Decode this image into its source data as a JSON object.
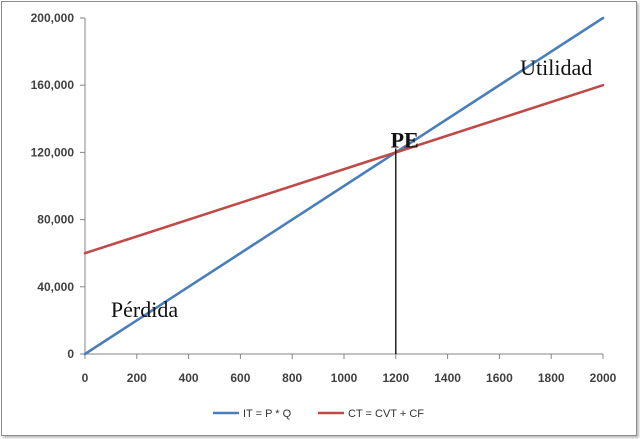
{
  "chart_data": {
    "type": "line",
    "x": [
      0,
      2000
    ],
    "xlim": [
      0,
      2000
    ],
    "ylim": [
      0,
      200000
    ],
    "x_ticks": [
      "0",
      "200",
      "400",
      "600",
      "800",
      "1000",
      "1200",
      "1400",
      "1600",
      "1800",
      "2000"
    ],
    "x_tick_values": [
      0,
      200,
      400,
      600,
      800,
      1000,
      1200,
      1400,
      1600,
      1800,
      2000
    ],
    "y_ticks": [
      "0",
      "40,000",
      "80,000",
      "120,000",
      "160,000",
      "200,000"
    ],
    "y_tick_values": [
      0,
      40000,
      80000,
      120000,
      160000,
      200000
    ],
    "grid": false,
    "legend_position": "bottom",
    "series": [
      {
        "name": "IT = P * Q",
        "x": [
          0,
          2000
        ],
        "values": [
          0,
          200000
        ],
        "color": "#4a7ebb"
      },
      {
        "name": "CT = CVT + CF",
        "x": [
          0,
          2000
        ],
        "values": [
          60000,
          160000
        ],
        "color": "#be4b48"
      }
    ],
    "break_even": {
      "x": 1200,
      "y": 120000
    },
    "annotations": [
      {
        "text": "PE",
        "x": 1180,
        "y": 123000
      },
      {
        "text": "Utilidad",
        "x": 1680,
        "y": 166000
      },
      {
        "text": "Pérdida",
        "x": 100,
        "y": 22000
      }
    ]
  }
}
